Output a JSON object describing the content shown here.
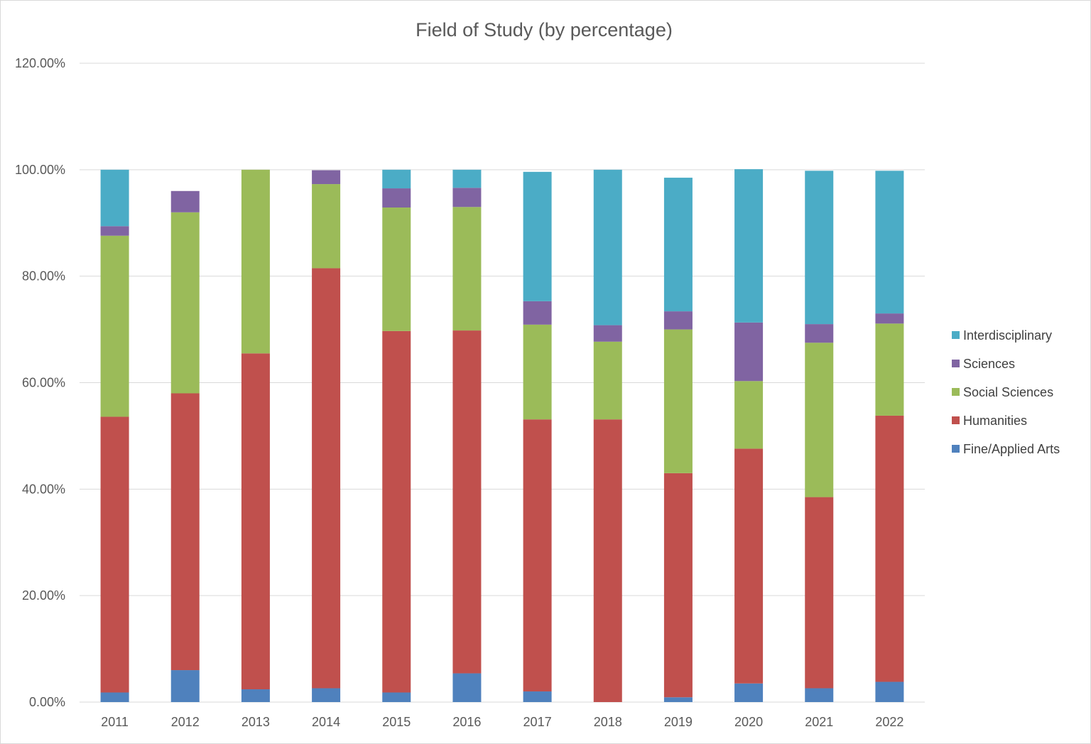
{
  "chart_data": {
    "type": "bar",
    "stacked": true,
    "title": "Field of Study (by percentage)",
    "xlabel": "",
    "ylabel": "",
    "ylim": [
      0,
      120
    ],
    "y_ticks": [
      0,
      20,
      40,
      60,
      80,
      100,
      120
    ],
    "y_tick_labels": [
      "0.00%",
      "20.00%",
      "40.00%",
      "60.00%",
      "80.00%",
      "100.00%",
      "120.00%"
    ],
    "grid": true,
    "legend_position": "right",
    "categories": [
      "2011",
      "2012",
      "2013",
      "2014",
      "2015",
      "2016",
      "2017",
      "2018",
      "2019",
      "2020",
      "2021",
      "2022"
    ],
    "series": [
      {
        "name": "Fine/Applied Arts",
        "color": "#4f81bd",
        "values": [
          1.8,
          6.0,
          2.4,
          2.6,
          1.8,
          5.4,
          2.0,
          0.0,
          0.9,
          3.5,
          2.6,
          3.8
        ]
      },
      {
        "name": "Humanities",
        "color": "#c0504d",
        "values": [
          51.8,
          52.0,
          63.1,
          78.9,
          67.9,
          64.4,
          51.1,
          53.1,
          42.1,
          44.1,
          35.9,
          50.0
        ]
      },
      {
        "name": "Social Sciences",
        "color": "#9bbb59",
        "values": [
          34.0,
          34.0,
          34.5,
          15.8,
          23.2,
          23.2,
          17.8,
          14.6,
          27.0,
          12.7,
          29.0,
          17.3
        ]
      },
      {
        "name": "Sciences",
        "color": "#8064a2",
        "values": [
          1.8,
          4.0,
          0.0,
          2.6,
          3.6,
          3.6,
          4.4,
          3.1,
          3.4,
          11.0,
          3.5,
          1.9
        ]
      },
      {
        "name": "Interdisciplinary",
        "color": "#4bacc6",
        "values": [
          10.6,
          0.0,
          0.0,
          0.0,
          3.5,
          3.4,
          24.3,
          29.2,
          25.1,
          28.8,
          28.8,
          26.8
        ]
      }
    ],
    "legend_order": [
      "Interdisciplinary",
      "Sciences",
      "Social Sciences",
      "Humanities",
      "Fine/Applied Arts"
    ]
  }
}
